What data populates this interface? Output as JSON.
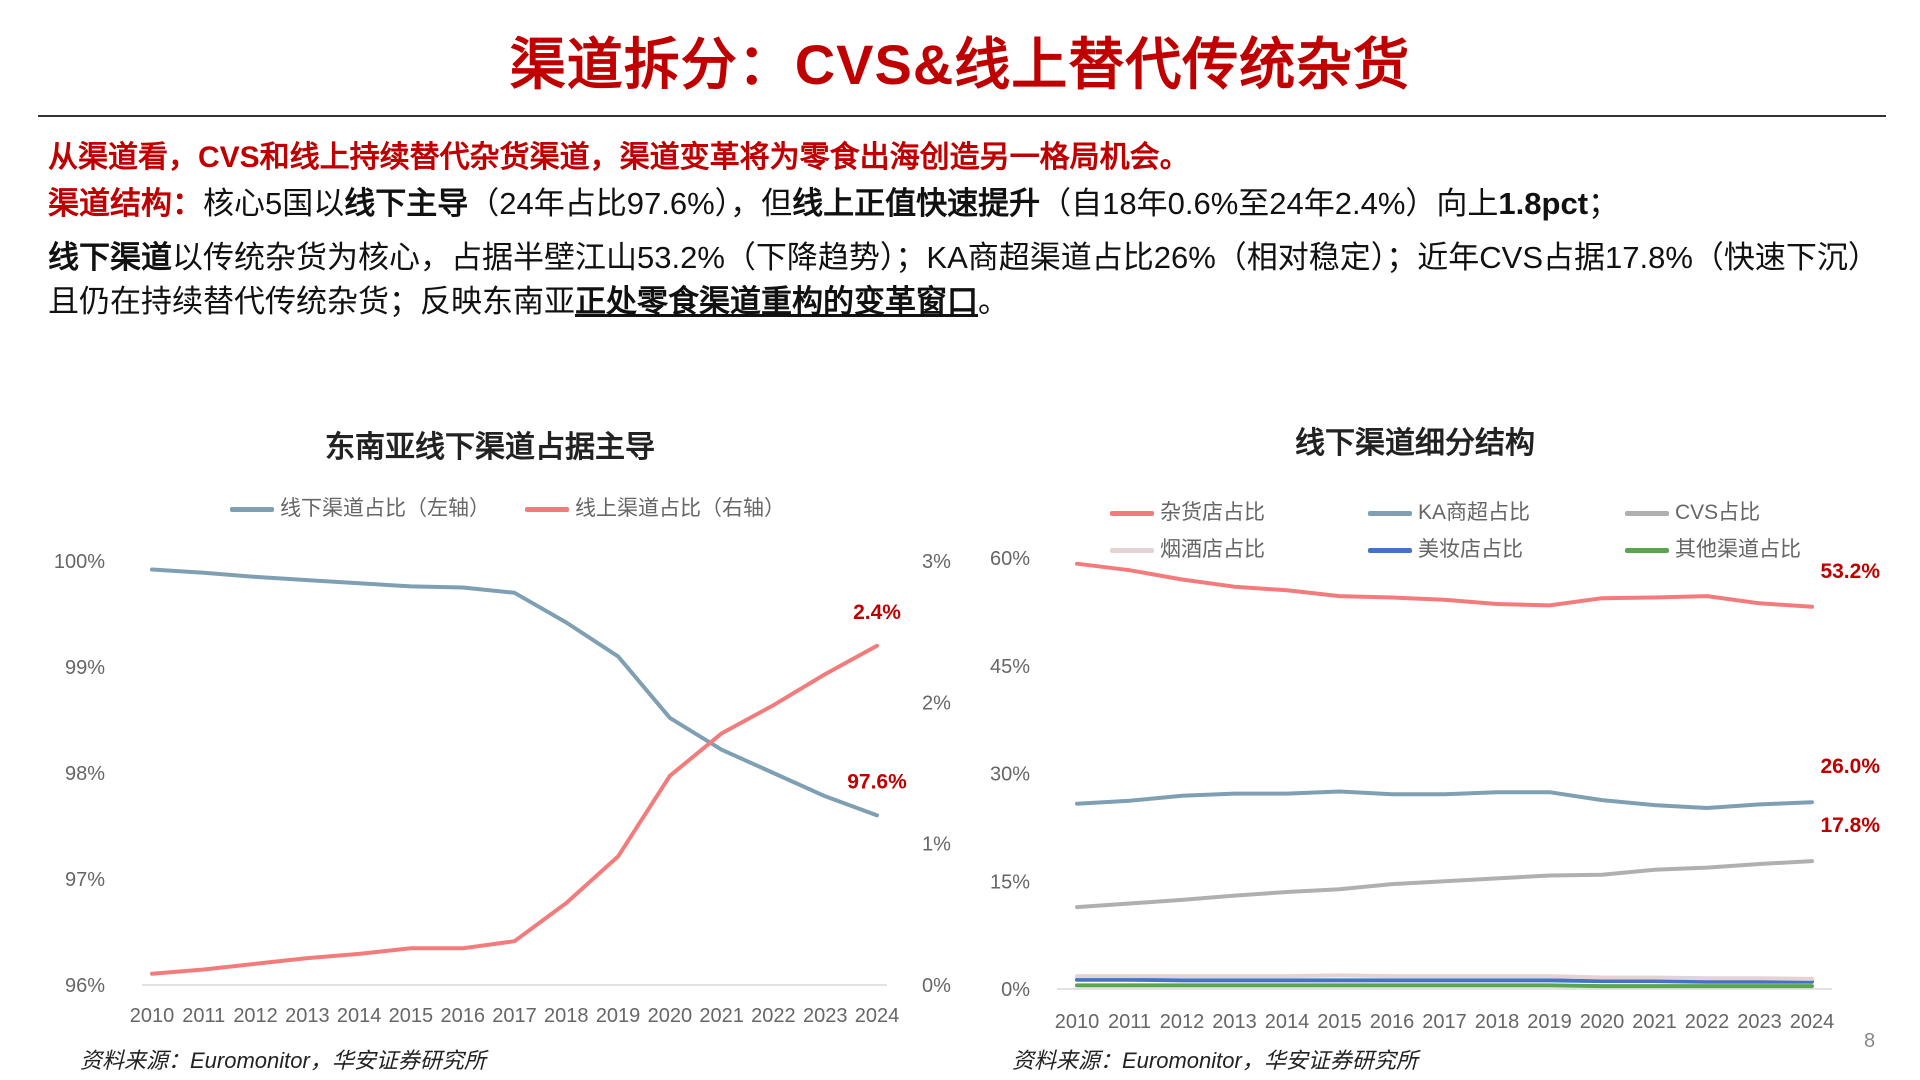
{
  "title": "渠道拆分：CVS&线上替代传统杂货",
  "lead": "从渠道看，CVS和线上持续替代杂货渠道，渠道变革将为零食出海创造另一格局机会。",
  "para1": {
    "label": "渠道结构：",
    "t1": "核心5国以",
    "b1": "线下主导",
    "t2": "（24年占比97.6%），但",
    "b2": "线上正值快速提升",
    "t3": "（自18年0.6%至24年2.4%）向上",
    "b3": "1.8pct",
    "t4": "；"
  },
  "para2": {
    "b1": "线下渠道",
    "t1": "以传统杂货为核心，占据半壁江山53.2%（下降趋势）；KA商超渠道占比26%（相对稳定）；近年CVS占据17.8%（快速下沉）且仍在持续替代传统杂货；反映东南亚",
    "bu": "正处零食渠道重构的变革窗口",
    "t2": "。"
  },
  "chart_data": [
    {
      "type": "line",
      "title": "东南亚线下渠道占据主导",
      "x": [
        "2010",
        "2011",
        "2012",
        "2013",
        "2014",
        "2015",
        "2016",
        "2017",
        "2018",
        "2019",
        "2020",
        "2021",
        "2022",
        "2023",
        "2024"
      ],
      "series": [
        {
          "name": "线下渠道占比（左轴）",
          "axis": "left",
          "color": "#7f9fb3",
          "values": [
            99.92,
            99.89,
            99.85,
            99.82,
            99.79,
            99.76,
            99.75,
            99.7,
            99.42,
            99.1,
            98.52,
            98.22,
            98.0,
            97.78,
            97.6
          ],
          "end_label": "97.6%"
        },
        {
          "name": "线上渠道占比（右轴）",
          "axis": "right",
          "color": "#f47b7b",
          "values": [
            0.08,
            0.11,
            0.15,
            0.19,
            0.22,
            0.26,
            0.26,
            0.31,
            0.58,
            0.91,
            1.48,
            1.78,
            1.98,
            2.2,
            2.4
          ],
          "end_label": "2.4%"
        }
      ],
      "left_axis": {
        "ylim": [
          96,
          100
        ],
        "ticks": [
          "96%",
          "97%",
          "98%",
          "99%",
          "100%"
        ]
      },
      "right_axis": {
        "ylim": [
          0,
          3
        ],
        "ticks": [
          "0%",
          "1%",
          "2%",
          "3%"
        ]
      },
      "legend": "top",
      "source": "资料来源：Euromonitor，华安证券研究所"
    },
    {
      "type": "line",
      "title": "线下渠道细分结构",
      "x": [
        "2010",
        "2011",
        "2012",
        "2013",
        "2014",
        "2015",
        "2016",
        "2017",
        "2018",
        "2019",
        "2020",
        "2021",
        "2022",
        "2023",
        "2024"
      ],
      "series": [
        {
          "name": "杂货店占比",
          "color": "#f47b7b",
          "values": [
            59.2,
            58.3,
            57.0,
            56.0,
            55.5,
            54.7,
            54.5,
            54.2,
            53.6,
            53.4,
            54.4,
            54.5,
            54.7,
            53.7,
            53.2
          ],
          "end_label": "53.2%"
        },
        {
          "name": "KA商超占比",
          "color": "#7f9fb3",
          "values": [
            25.8,
            26.2,
            26.9,
            27.2,
            27.2,
            27.5,
            27.1,
            27.1,
            27.4,
            27.4,
            26.3,
            25.6,
            25.2,
            25.7,
            26.0
          ],
          "end_label": "26.0%"
        },
        {
          "name": "CVS占比",
          "color": "#b0b0b0",
          "values": [
            11.4,
            11.9,
            12.4,
            13.0,
            13.5,
            13.9,
            14.6,
            15.0,
            15.4,
            15.8,
            15.9,
            16.6,
            16.9,
            17.4,
            17.8
          ],
          "end_label": "17.8%"
        },
        {
          "name": "烟酒店占比",
          "color": "#e5d3d3",
          "values": [
            1.8,
            1.8,
            1.8,
            1.8,
            1.8,
            1.9,
            1.8,
            1.8,
            1.8,
            1.8,
            1.6,
            1.6,
            1.5,
            1.5,
            1.4
          ]
        },
        {
          "name": "美妆店占比",
          "color": "#4472c4",
          "values": [
            1.3,
            1.3,
            1.2,
            1.2,
            1.2,
            1.2,
            1.2,
            1.2,
            1.2,
            1.2,
            1.1,
            1.1,
            1.0,
            1.0,
            1.0
          ]
        },
        {
          "name": "其他渠道占比",
          "color": "#5ba552",
          "values": [
            0.5,
            0.5,
            0.5,
            0.5,
            0.5,
            0.5,
            0.5,
            0.5,
            0.5,
            0.5,
            0.4,
            0.4,
            0.4,
            0.4,
            0.4
          ]
        }
      ],
      "ylim": [
        0,
        60
      ],
      "ticks": [
        "0%",
        "15%",
        "30%",
        "45%",
        "60%"
      ],
      "legend": "top",
      "source": "资料来源：Euromonitor，华安证券研究所"
    }
  ],
  "page_number": "8"
}
